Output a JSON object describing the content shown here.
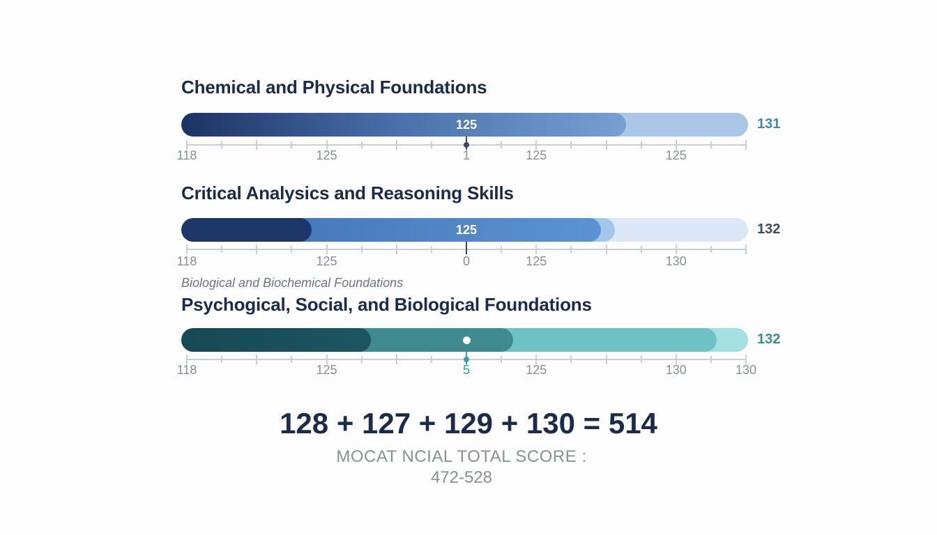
{
  "chart_data": {
    "type": "bar",
    "sections": [
      {
        "title": "Chemical and Physical Foundations",
        "bar_label": "125",
        "max_label": "131",
        "max_color": "#4a86b0",
        "track_color": "#a9c6e6",
        "fills": [
          {
            "fraction": 0.785,
            "colors": [
              "#1b3364",
              "#4a72ae",
              "#76a0d3"
            ]
          }
        ],
        "ticks": [
          {
            "label": "118",
            "pos": 0.0
          },
          {
            "label": "125",
            "pos": 0.25
          },
          {
            "label": "1",
            "pos": 0.5
          },
          {
            "label": "125",
            "pos": 0.625
          },
          {
            "label": "125",
            "pos": 0.875
          }
        ],
        "marker": {
          "pos": 0.5,
          "style": "dot"
        }
      },
      {
        "title": "Critical Analysics and Reasoning Skills",
        "bar_label": "125",
        "max_label": "132",
        "max_color": "#3b4d66",
        "track_color": "#dce8f7",
        "fills": [
          {
            "fraction": 0.765,
            "colors": [
              "#a4c5ec",
              "#a4c5ec"
            ]
          },
          {
            "fraction": 0.74,
            "colors": [
              "#3f6fb4",
              "#5b93d2"
            ]
          },
          {
            "fraction": 0.23,
            "colors": [
              "#1d3768",
              "#1d3768"
            ]
          }
        ],
        "ticks": [
          {
            "label": "118",
            "pos": 0.0
          },
          {
            "label": "125",
            "pos": 0.25
          },
          {
            "label": "0",
            "pos": 0.5
          },
          {
            "label": "125",
            "pos": 0.625
          },
          {
            "label": "130",
            "pos": 0.875
          }
        ],
        "marker": {
          "pos": 0.5,
          "style": "line"
        }
      },
      {
        "subtitle": "Biological and Biochemical Foundations",
        "title": "Psychogical, Social, and Biological Foundations",
        "bar_label": "",
        "max_label": "132",
        "max_color": "#3a8a92",
        "track_color": "#a4e0e2",
        "fills": [
          {
            "fraction": 0.945,
            "colors": [
              "#6ec2c6",
              "#6ec2c6"
            ]
          },
          {
            "fraction": 0.585,
            "colors": [
              "#3e8a8e",
              "#3e8a8e"
            ]
          },
          {
            "fraction": 0.335,
            "colors": [
              "#164a55",
              "#1c5560"
            ]
          }
        ],
        "ticks": [
          {
            "label": "118",
            "pos": 0.0
          },
          {
            "label": "125",
            "pos": 0.25
          },
          {
            "label": "5",
            "pos": 0.5,
            "color": "#3a9da6"
          },
          {
            "label": "125",
            "pos": 0.625
          },
          {
            "label": "130",
            "pos": 0.875
          },
          {
            "label": "130",
            "pos": 1.0
          }
        ],
        "marker": {
          "pos": 0.5,
          "style": "dot-white"
        }
      }
    ]
  },
  "summary": {
    "equation": "128 + 127 + 129 + 130 = 514",
    "total_label": "MOCAT NCIAL TOTAL SCORE :",
    "total_range": "472-528"
  }
}
